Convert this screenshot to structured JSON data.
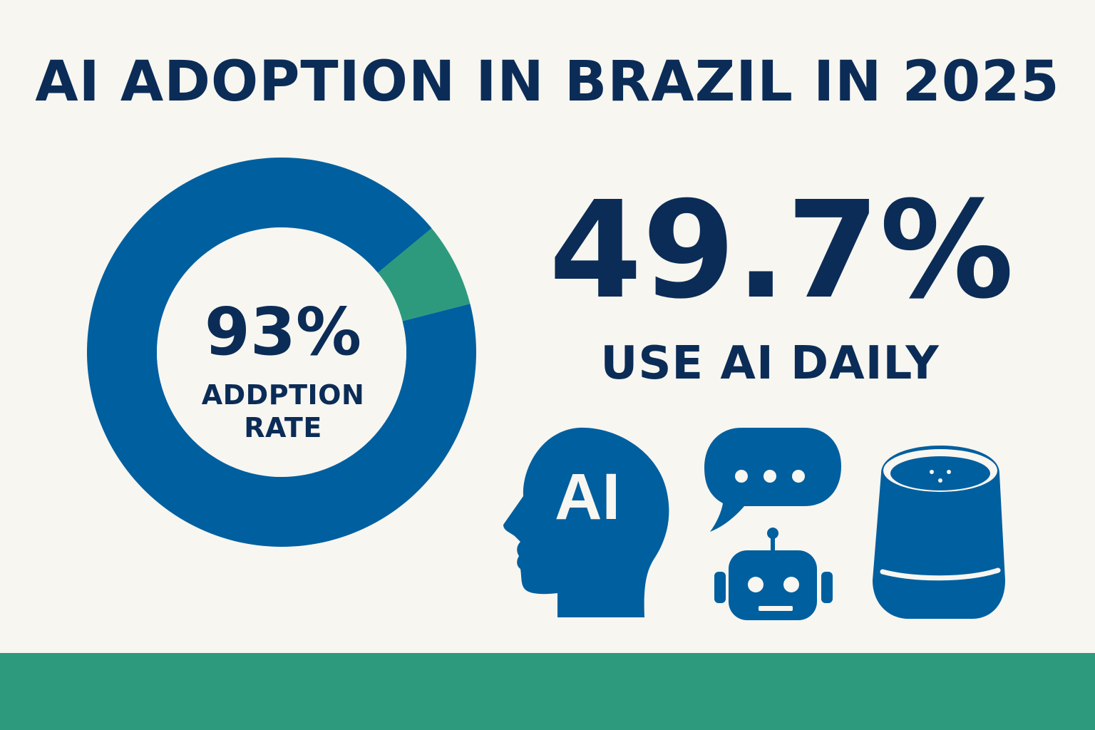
{
  "title": "AI ADOPTION IN BRAZIL IN 2025",
  "colors": {
    "background": "#f7f6f1",
    "text": "#0b2c56",
    "primary_blue": "#005f9f",
    "accent_green": "#2e9a7d"
  },
  "chart_data": {
    "type": "pie",
    "title": "",
    "center_value": "93%",
    "center_caption_line1": "ADDPTION",
    "center_caption_line2": "RATE",
    "slices": [
      {
        "label": "",
        "value": 93,
        "color": "#005f9f"
      },
      {
        "label": "",
        "value": 7,
        "color": "#2e9a7d"
      }
    ]
  },
  "stat": {
    "value": "49.7%",
    "caption": "USE AI DAILY"
  },
  "icons": {
    "head_text": "AI",
    "names": [
      "ai-head-icon",
      "chat-bubble-icon",
      "robot-icon",
      "smart-speaker-icon"
    ]
  }
}
